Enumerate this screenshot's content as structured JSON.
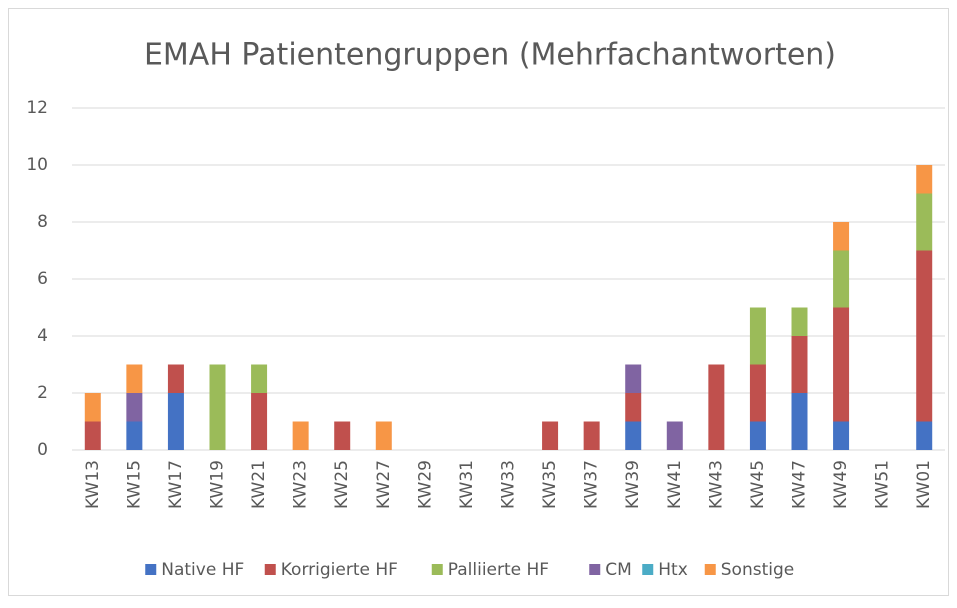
{
  "chart_data": {
    "type": "bar",
    "stacked": true,
    "title": "EMAH Patientengruppen (Mehrfachantworten)",
    "categories": [
      "KW13",
      "KW15",
      "KW17",
      "KW19",
      "KW21",
      "KW23",
      "KW25",
      "KW27",
      "KW29",
      "KW31",
      "KW33",
      "KW35",
      "KW37",
      "KW39",
      "KW41",
      "KW43",
      "KW45",
      "KW47",
      "KW49",
      "KW51",
      "KW01"
    ],
    "series": [
      {
        "name": "Native HF",
        "color": "#4472c4",
        "values": [
          0,
          1,
          2,
          0,
          0,
          0,
          0,
          0,
          0,
          0,
          0,
          0,
          0,
          1,
          0,
          0,
          1,
          2,
          1,
          0,
          1
        ]
      },
      {
        "name": "Korrigierte HF",
        "color": "#c0504d",
        "values": [
          1,
          0,
          1,
          0,
          2,
          0,
          1,
          0,
          0,
          0,
          0,
          1,
          1,
          1,
          0,
          3,
          2,
          2,
          4,
          0,
          6
        ]
      },
      {
        "name": "Palliierte HF",
        "color": "#9bbb59",
        "values": [
          0,
          0,
          0,
          3,
          1,
          0,
          0,
          0,
          0,
          0,
          0,
          0,
          0,
          0,
          0,
          0,
          2,
          1,
          2,
          0,
          2
        ]
      },
      {
        "name": "CM",
        "color": "#8064a2",
        "values": [
          0,
          1,
          0,
          0,
          0,
          0,
          0,
          0,
          0,
          0,
          0,
          0,
          0,
          1,
          1,
          0,
          0,
          0,
          0,
          0,
          0
        ]
      },
      {
        "name": "Htx",
        "color": "#4bacc6",
        "values": [
          0,
          0,
          0,
          0,
          0,
          0,
          0,
          0,
          0,
          0,
          0,
          0,
          0,
          0,
          0,
          0,
          0,
          0,
          0,
          0,
          0
        ]
      },
      {
        "name": "Sonstige",
        "color": "#f79646",
        "values": [
          1,
          1,
          0,
          0,
          0,
          1,
          0,
          1,
          0,
          0,
          0,
          0,
          0,
          0,
          0,
          0,
          0,
          0,
          1,
          0,
          1
        ]
      }
    ],
    "ylim": [
      0,
      12
    ],
    "yticks": [
      0,
      2,
      4,
      6,
      8,
      10,
      12
    ],
    "grid": true,
    "legend": "bottom"
  }
}
